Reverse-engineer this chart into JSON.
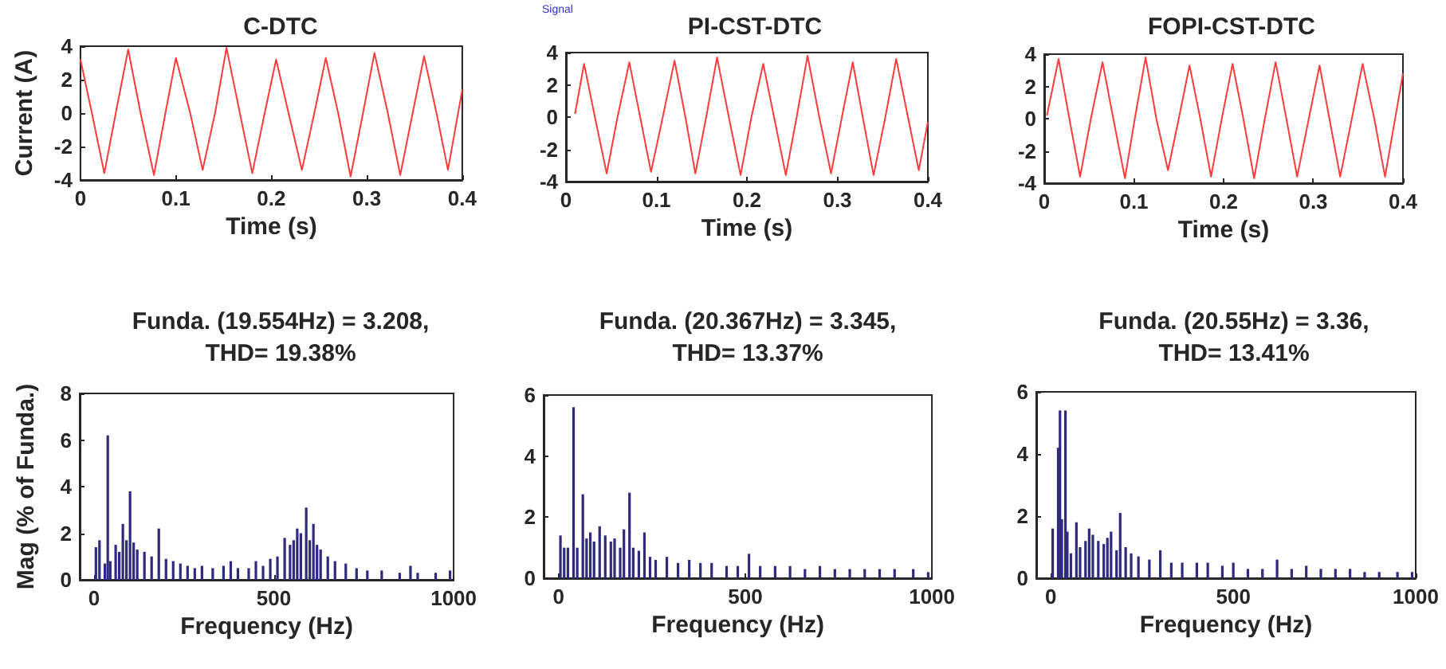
{
  "chart_data": [
    {
      "type": "line",
      "title": "C-DTC",
      "xlabel": "Time (s)",
      "ylabel": "Current (A)",
      "xlim": [
        0,
        0.4
      ],
      "xticks": [
        0,
        0.1,
        0.2,
        0.3,
        0.4
      ],
      "ylim": [
        -4,
        4
      ],
      "yticks": [
        -4,
        -2,
        0,
        2,
        4
      ],
      "series": [
        {
          "color": "#ff3b3b",
          "x": [
            0,
            0.012,
            0.025,
            0.037,
            0.05,
            0.063,
            0.077,
            0.089,
            0.1,
            0.115,
            0.128,
            0.141,
            0.153,
            0.167,
            0.18,
            0.193,
            0.205,
            0.218,
            0.232,
            0.245,
            0.257,
            0.27,
            0.283,
            0.296,
            0.308,
            0.322,
            0.335,
            0.348,
            0.36,
            0.373,
            0.385,
            0.4
          ],
          "values": [
            3.2,
            0,
            -3.6,
            0,
            3.8,
            0,
            -3.7,
            0,
            3.3,
            0,
            -3.4,
            0,
            3.9,
            0,
            -3.6,
            0,
            3.2,
            0,
            -3.4,
            0,
            3.3,
            0,
            -3.8,
            0,
            3.6,
            0,
            -3.7,
            0,
            3.4,
            0,
            -3.4,
            1.4
          ]
        }
      ]
    },
    {
      "type": "line",
      "title": "PI-CST-DTC",
      "annotations": [
        "Signal"
      ],
      "xlabel": "Time (s)",
      "xlim": [
        0,
        0.4
      ],
      "xticks": [
        0,
        0.1,
        0.2,
        0.3,
        0.4
      ],
      "ylim": [
        -4,
        4
      ],
      "yticks": [
        -4,
        -2,
        0,
        2,
        4
      ],
      "series": [
        {
          "color": "#ff3b3b",
          "x": [
            0.01,
            0.02,
            0.032,
            0.045,
            0.057,
            0.07,
            0.082,
            0.094,
            0.107,
            0.12,
            0.132,
            0.143,
            0.155,
            0.167,
            0.18,
            0.193,
            0.205,
            0.218,
            0.23,
            0.243,
            0.255,
            0.267,
            0.28,
            0.293,
            0.305,
            0.317,
            0.328,
            0.34,
            0.353,
            0.365,
            0.378,
            0.39,
            0.4
          ],
          "values": [
            0.2,
            3.3,
            0,
            -3.5,
            0,
            3.4,
            0,
            -3.4,
            0,
            3.5,
            0,
            -3.5,
            0,
            3.7,
            0,
            -3.6,
            0,
            3.3,
            0,
            -3.6,
            0,
            3.8,
            0,
            -3.5,
            0,
            3.4,
            0,
            -3.6,
            0,
            3.6,
            0,
            -3.3,
            -0.3
          ]
        }
      ]
    },
    {
      "type": "line",
      "title": "FOPI-CST-DTC",
      "xlabel": "Time (s)",
      "xlim": [
        0,
        0.4
      ],
      "xticks": [
        0,
        0.1,
        0.2,
        0.3,
        0.4
      ],
      "ylim": [
        -4,
        4
      ],
      "yticks": [
        -4,
        -2,
        0,
        2,
        4
      ],
      "series": [
        {
          "color": "#ff3b3b",
          "x": [
            0.003,
            0.016,
            0.028,
            0.04,
            0.052,
            0.065,
            0.077,
            0.09,
            0.101,
            0.113,
            0.125,
            0.138,
            0.15,
            0.162,
            0.174,
            0.186,
            0.198,
            0.21,
            0.222,
            0.234,
            0.246,
            0.258,
            0.27,
            0.282,
            0.295,
            0.307,
            0.318,
            0.33,
            0.343,
            0.355,
            0.368,
            0.38,
            0.4
          ],
          "values": [
            0.2,
            3.7,
            0,
            -3.6,
            0,
            3.5,
            0,
            -3.7,
            0,
            3.8,
            0,
            -3.2,
            0,
            3.3,
            0,
            -3.6,
            0,
            3.4,
            0,
            -3.7,
            0,
            3.5,
            0,
            -3.6,
            0,
            3.3,
            0,
            -3.6,
            0,
            3.4,
            0,
            -3.6,
            2.8
          ]
        }
      ]
    },
    {
      "type": "bar",
      "title": "Funda. (19.554Hz) = 3.208,\nTHD= 19.38%",
      "xlabel": "Frequency (Hz)",
      "ylabel": "Mag (% of Funda.)",
      "xlim": [
        -40,
        1000
      ],
      "xticks": [
        0,
        500,
        1000
      ],
      "ylim": [
        0,
        8
      ],
      "yticks": [
        0,
        2,
        4,
        6,
        8
      ],
      "series": [
        {
          "color": "#2e2a7e",
          "x": [
            5,
            15,
            30,
            38,
            45,
            60,
            70,
            80,
            90,
            100,
            110,
            120,
            140,
            160,
            180,
            200,
            220,
            240,
            260,
            280,
            300,
            330,
            360,
            380,
            400,
            430,
            450,
            470,
            490,
            510,
            530,
            545,
            555,
            565,
            575,
            590,
            600,
            610,
            620,
            630,
            650,
            670,
            700,
            730,
            760,
            800,
            850,
            880,
            900,
            950,
            990
          ],
          "values": [
            1.4,
            1.7,
            0.7,
            6.2,
            0.8,
            1.5,
            1.2,
            2.4,
            1.7,
            3.8,
            1.6,
            1.3,
            1.2,
            1.0,
            2.2,
            0.9,
            0.8,
            0.7,
            0.6,
            0.5,
            0.6,
            0.5,
            0.6,
            0.8,
            0.5,
            0.5,
            0.8,
            0.6,
            0.9,
            1.0,
            1.8,
            1.5,
            1.7,
            2.2,
            2.0,
            3.1,
            1.7,
            2.4,
            1.5,
            1.3,
            1.0,
            0.8,
            0.7,
            0.5,
            0.4,
            0.4,
            0.3,
            0.6,
            0.3,
            0.3,
            0.4
          ]
        }
      ]
    },
    {
      "type": "bar",
      "title": "Funda. (20.367Hz) = 3.345,\nTHD= 13.37%",
      "xlabel": "Frequency (Hz)",
      "xlim": [
        -40,
        1000
      ],
      "xticks": [
        0,
        500,
        1000
      ],
      "ylim": [
        0,
        6
      ],
      "yticks": [
        0,
        2,
        4,
        6
      ],
      "series": [
        {
          "color": "#2e2a7e",
          "x": [
            5,
            15,
            25,
            40,
            50,
            65,
            75,
            85,
            95,
            110,
            125,
            140,
            150,
            165,
            175,
            190,
            200,
            215,
            230,
            245,
            260,
            290,
            320,
            350,
            380,
            410,
            450,
            480,
            510,
            540,
            580,
            620,
            660,
            700,
            740,
            780,
            820,
            860,
            900,
            950,
            990
          ],
          "values": [
            1.4,
            1.0,
            1.0,
            5.6,
            1.0,
            2.75,
            1.3,
            1.5,
            1.2,
            1.7,
            1.4,
            1.2,
            1.3,
            1.0,
            1.6,
            2.8,
            1.0,
            0.9,
            1.5,
            0.7,
            0.6,
            0.7,
            0.5,
            0.6,
            0.5,
            0.5,
            0.4,
            0.4,
            0.8,
            0.4,
            0.4,
            0.4,
            0.3,
            0.4,
            0.3,
            0.3,
            0.3,
            0.3,
            0.3,
            0.3,
            0.2
          ]
        }
      ]
    },
    {
      "type": "bar",
      "title": "Funda. (20.55Hz) = 3.36,\nTHD= 13.41%",
      "xlabel": "Frequency (Hz)",
      "xlim": [
        -40,
        1000
      ],
      "xticks": [
        0,
        500,
        1000
      ],
      "ylim": [
        0,
        6
      ],
      "yticks": [
        0,
        2,
        4,
        6
      ],
      "series": [
        {
          "color": "#2e2a7e",
          "x": [
            5,
            20,
            25,
            30,
            40,
            45,
            55,
            70,
            80,
            95,
            105,
            115,
            130,
            145,
            155,
            165,
            180,
            190,
            205,
            220,
            240,
            270,
            300,
            330,
            360,
            400,
            430,
            470,
            500,
            540,
            580,
            620,
            660,
            700,
            740,
            780,
            820,
            860,
            900,
            950,
            990
          ],
          "values": [
            1.6,
            4.2,
            5.4,
            1.9,
            5.4,
            1.5,
            0.8,
            1.8,
            1.0,
            1.2,
            1.6,
            1.4,
            1.2,
            1.1,
            1.3,
            1.5,
            0.9,
            2.1,
            1.0,
            0.8,
            0.7,
            0.6,
            0.9,
            0.5,
            0.5,
            0.5,
            0.5,
            0.4,
            0.5,
            0.3,
            0.3,
            0.6,
            0.3,
            0.4,
            0.3,
            0.3,
            0.3,
            0.2,
            0.2,
            0.2,
            0.2
          ]
        }
      ]
    }
  ]
}
